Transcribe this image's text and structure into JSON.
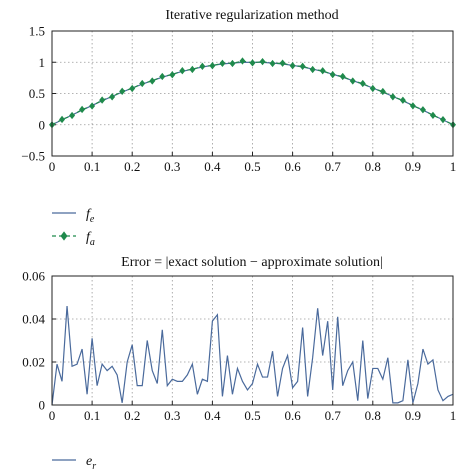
{
  "colors": {
    "exact": "#4a6a9c",
    "approx": "#1f8a4c",
    "error": "#4a6a9c"
  },
  "chart_data": [
    {
      "type": "line",
      "title": "Iterative regularization method",
      "xlabel": "",
      "ylabel": "",
      "xlim": [
        0,
        1
      ],
      "ylim": [
        -0.5,
        1.5
      ],
      "grid": true,
      "xticks": [
        "0",
        "0.1",
        "0.2",
        "0.3",
        "0.4",
        "0.5",
        "0.6",
        "0.7",
        "0.8",
        "0.9",
        "1"
      ],
      "yticks": [
        "−0.5",
        "0",
        "0.5",
        "1",
        "1.5"
      ],
      "legend_position": "below",
      "x": [
        0,
        0.025,
        0.05,
        0.075,
        0.1,
        0.125,
        0.15,
        0.175,
        0.2,
        0.225,
        0.25,
        0.275,
        0.3,
        0.325,
        0.35,
        0.375,
        0.4,
        0.425,
        0.45,
        0.475,
        0.5,
        0.525,
        0.55,
        0.575,
        0.6,
        0.625,
        0.65,
        0.675,
        0.7,
        0.725,
        0.75,
        0.775,
        0.8,
        0.825,
        0.85,
        0.875,
        0.9,
        0.925,
        0.95,
        0.975,
        1
      ],
      "series": [
        {
          "name": "fe",
          "label_main": "f",
          "label_sub": "e",
          "style": "solid",
          "values": [
            0,
            0.078,
            0.156,
            0.233,
            0.309,
            0.383,
            0.454,
            0.522,
            0.588,
            0.649,
            0.707,
            0.76,
            0.809,
            0.853,
            0.891,
            0.924,
            0.951,
            0.972,
            0.988,
            0.997,
            1.0,
            0.997,
            0.988,
            0.972,
            0.951,
            0.924,
            0.891,
            0.853,
            0.809,
            0.76,
            0.707,
            0.649,
            0.588,
            0.522,
            0.454,
            0.383,
            0.309,
            0.233,
            0.156,
            0.078,
            0
          ]
        },
        {
          "name": "fa",
          "label_main": "f",
          "label_sub": "a",
          "style": "dashed-diamond",
          "values": [
            0,
            0.085,
            0.148,
            0.245,
            0.3,
            0.395,
            0.447,
            0.535,
            0.58,
            0.66,
            0.7,
            0.772,
            0.8,
            0.865,
            0.885,
            0.935,
            0.945,
            0.983,
            0.98,
            1.02,
            0.99,
            1.01,
            0.98,
            0.985,
            0.945,
            0.935,
            0.884,
            0.864,
            0.802,
            0.772,
            0.7,
            0.66,
            0.58,
            0.532,
            0.447,
            0.392,
            0.302,
            0.24,
            0.15,
            0.082,
            0
          ]
        }
      ]
    },
    {
      "type": "line",
      "title": "Error = |exact solution − approximate solution|",
      "xlabel": "",
      "ylabel": "",
      "xlim": [
        0,
        1
      ],
      "ylim": [
        0,
        0.06
      ],
      "grid": true,
      "xticks": [
        "0",
        "0.1",
        "0.2",
        "0.3",
        "0.4",
        "0.5",
        "0.6",
        "0.7",
        "0.8",
        "0.9",
        "1"
      ],
      "yticks": [
        "0",
        "0.02",
        "0.04",
        "0.06"
      ],
      "legend_position": "below",
      "x": [
        0,
        0.0125,
        0.025,
        0.0375,
        0.05,
        0.0625,
        0.075,
        0.0875,
        0.1,
        0.1125,
        0.125,
        0.1375,
        0.15,
        0.1625,
        0.175,
        0.1875,
        0.2,
        0.2125,
        0.225,
        0.2375,
        0.25,
        0.2625,
        0.275,
        0.2875,
        0.3,
        0.3125,
        0.325,
        0.3375,
        0.35,
        0.3625,
        0.375,
        0.3875,
        0.4,
        0.4125,
        0.425,
        0.4375,
        0.45,
        0.4625,
        0.475,
        0.4875,
        0.5,
        0.5125,
        0.525,
        0.5375,
        0.55,
        0.5625,
        0.575,
        0.5875,
        0.6,
        0.6125,
        0.625,
        0.6375,
        0.65,
        0.6625,
        0.675,
        0.6875,
        0.7,
        0.7125,
        0.725,
        0.7375,
        0.75,
        0.7625,
        0.775,
        0.7875,
        0.8,
        0.8125,
        0.825,
        0.8375,
        0.85,
        0.8625,
        0.875,
        0.8875,
        0.9,
        0.9125,
        0.925,
        0.9375,
        0.95,
        0.9625,
        0.975,
        0.9875,
        1
      ],
      "series": [
        {
          "name": "er",
          "label_main": "e",
          "label_sub": "r",
          "style": "solid",
          "values": [
            0,
            0.019,
            0.011,
            0.046,
            0.018,
            0.019,
            0.026,
            0.005,
            0.031,
            0.009,
            0.019,
            0.016,
            0.018,
            0.014,
            0.001,
            0.02,
            0.028,
            0.009,
            0.009,
            0.03,
            0.016,
            0.01,
            0.035,
            0.009,
            0.012,
            0.011,
            0.011,
            0.014,
            0.019,
            0.005,
            0.012,
            0.011,
            0.039,
            0.042,
            0.004,
            0.023,
            0.005,
            0.017,
            0.011,
            0.007,
            0.01,
            0.019,
            0.013,
            0.013,
            0.025,
            0.004,
            0.017,
            0.023,
            0.008,
            0.011,
            0.036,
            0.004,
            0.022,
            0.045,
            0.023,
            0.039,
            0.007,
            0.041,
            0.009,
            0.016,
            0.02,
            0.002,
            0.03,
            0.003,
            0.017,
            0.017,
            0.012,
            0.022,
            0.001,
            0.001,
            0.002,
            0.021,
            0.001,
            0.01,
            0.026,
            0.019,
            0.021,
            0.007,
            0.002,
            0.004,
            0.005
          ]
        }
      ]
    }
  ]
}
